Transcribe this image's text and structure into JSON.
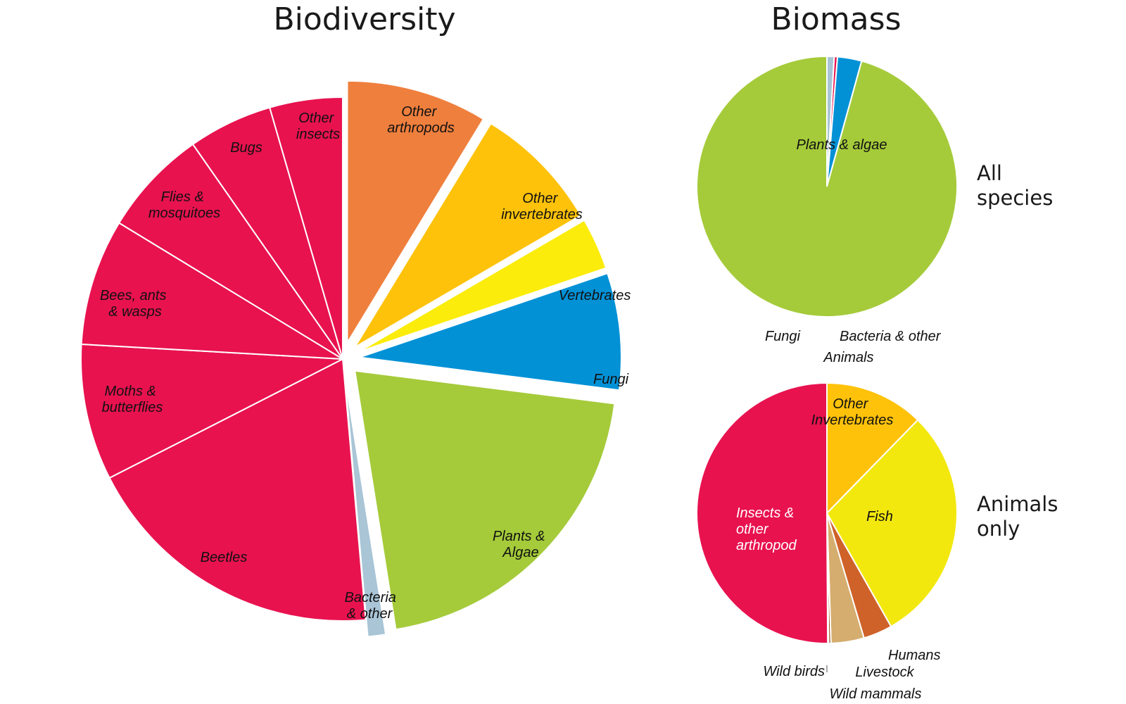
{
  "titles": {
    "biodiversity": "Biodiversity",
    "biomass": "Biomass"
  },
  "row_labels": {
    "all_species": [
      "All",
      "species"
    ],
    "animals_only": [
      "Animals",
      "only"
    ]
  },
  "colors": {
    "insects": "#e8124f",
    "other_arthropods": "#ef7f3d",
    "other_invertebrates": "#fec20a",
    "vertebrates": "#fbec0b",
    "fungi": "#0391d6",
    "plants": "#a5cb3a",
    "bacteria": "#a9c5d6",
    "fish": "#f2e80e",
    "humans": "#cf6228",
    "livestock": "#d5ad6e",
    "wild_mammals": "#9e5527",
    "wild_birds": "#c9b8a0"
  },
  "chart_data": [
    {
      "type": "pie",
      "title": "Biodiversity",
      "start_angle_deg": 0,
      "slices": [
        {
          "label": "Other arthropods",
          "value": 8.7,
          "color": "#ef7f3d",
          "exploded": true
        },
        {
          "label": "Other invertebrates",
          "value": 7.9,
          "color": "#fec20a",
          "exploded": true
        },
        {
          "label": "Vertebrates",
          "value": 3.2,
          "color": "#fbec0b",
          "exploded": true
        },
        {
          "label": "Fungi",
          "value": 7.2,
          "color": "#0391d6",
          "exploded": true
        },
        {
          "label": "Plants & Algae",
          "value": 20.5,
          "color": "#a5cb3a",
          "exploded": true
        },
        {
          "label": "Bacteria & other",
          "value": 1.1,
          "color": "#a9c5d6",
          "exploded": true
        },
        {
          "label": "Beetles",
          "value": 18.9,
          "color": "#e8124f"
        },
        {
          "label": "Moths & butterflies",
          "value": 8.4,
          "color": "#e8124f"
        },
        {
          "label": "Bees, ants & wasps",
          "value": 7.8,
          "color": "#e8124f"
        },
        {
          "label": "Flies & mosquitoes",
          "value": 6.6,
          "color": "#e8124f"
        },
        {
          "label": "Bugs",
          "value": 5.2,
          "color": "#e8124f"
        },
        {
          "label": "Other insects",
          "value": 4.5,
          "color": "#e8124f"
        }
      ]
    },
    {
      "type": "pie",
      "title": "Biomass",
      "subtitle": "All species",
      "start_angle_deg": 0,
      "slices": [
        {
          "label": "Bacteria & other",
          "value": 0.9,
          "color": "#a9c5d6"
        },
        {
          "label": "Animals",
          "value": 0.4,
          "color": "#e8124f"
        },
        {
          "label": "Fungi",
          "value": 3.0,
          "color": "#0391d6"
        },
        {
          "label": "Plants & algae",
          "value": 95.7,
          "color": "#a5cb3a"
        }
      ]
    },
    {
      "type": "pie",
      "title": "Biomass",
      "subtitle": "Animals only",
      "start_angle_deg": 0,
      "slices": [
        {
          "label": "Other Invertebrates",
          "value": 12.3,
          "color": "#fec20a"
        },
        {
          "label": "Fish",
          "value": 29.5,
          "color": "#f2e80e"
        },
        {
          "label": "Humans",
          "value": 3.6,
          "color": "#cf6228"
        },
        {
          "label": "Livestock",
          "value": 4.1,
          "color": "#d5ad6e"
        },
        {
          "label": "Wild mammals",
          "value": 0.3,
          "color": "#9e5527"
        },
        {
          "label": "Wild birds",
          "value": 0.1,
          "color": "#c9b8a0"
        },
        {
          "label": "Insects & other arthropod",
          "value": 50.1,
          "color": "#e8124f"
        }
      ]
    }
  ],
  "labels": {
    "bio": {
      "other_arthropods": [
        "Other",
        "arthropods"
      ],
      "other_invertebrates": [
        "Other",
        "invertebrates"
      ],
      "vertebrates": [
        "Vertebrates"
      ],
      "fungi": [
        "Fungi"
      ],
      "plants": [
        "Plants &",
        "Algae"
      ],
      "bacteria": [
        "Bacteria",
        "& other"
      ],
      "beetles": [
        "Beetles"
      ],
      "moths": [
        "Moths &",
        "butterflies"
      ],
      "bees": [
        "Bees, ants",
        "& wasps"
      ],
      "flies": [
        "Flies &",
        "mosquitoes"
      ],
      "bugs": [
        "Bugs"
      ],
      "other_insects": [
        "Other",
        "insects"
      ]
    },
    "all": {
      "plants": [
        "Plants & algae"
      ],
      "fungi": [
        "Fungi"
      ],
      "bacteria": [
        "Bacteria & other"
      ],
      "animals": [
        "Animals"
      ]
    },
    "animals": {
      "other_inv": [
        "Other",
        "Invertebrates"
      ],
      "fish": [
        "Fish"
      ],
      "insects": [
        "Insects &",
        "other",
        "arthropod"
      ],
      "humans": [
        "Humans"
      ],
      "livestock": [
        "Livestock"
      ],
      "wild_mammals": [
        "Wild mammals"
      ],
      "wild_birds": [
        "Wild birds"
      ]
    }
  }
}
